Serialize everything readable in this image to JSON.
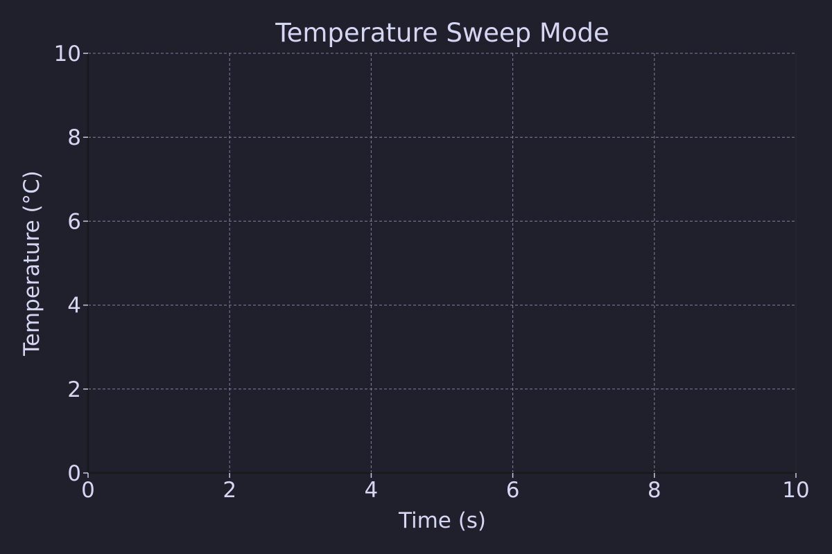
{
  "chart_data": {
    "type": "line",
    "title": "Temperature Sweep Mode",
    "xlabel": "Time (s)",
    "ylabel": "Temperature (°C)",
    "xlim": [
      0,
      10
    ],
    "ylim": [
      0,
      10
    ],
    "xticks": [
      0,
      2,
      4,
      6,
      8,
      10
    ],
    "yticks": [
      0,
      2,
      4,
      6,
      8,
      10
    ],
    "series": [],
    "grid": true,
    "grid_style": "dashed",
    "legend": "none"
  },
  "colors": {
    "background": "#20202d",
    "text": "#d4d6f2",
    "grid": "#80809a",
    "axis": "#151a1a"
  }
}
